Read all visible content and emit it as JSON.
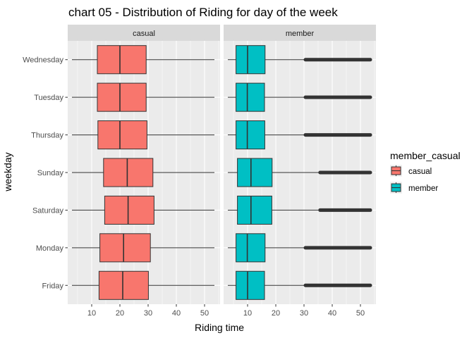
{
  "chart_data": {
    "type": "boxplot",
    "title": "chart 05 - Distribution of Riding for day of the week",
    "xlabel": "Riding time",
    "ylabel": "weekday",
    "xlim": [
      1.5,
      55.5
    ],
    "xticks": [
      10,
      20,
      30,
      40,
      50
    ],
    "categories": [
      "Wednesday",
      "Tuesday",
      "Thursday",
      "Sunday",
      "Saturday",
      "Monday",
      "Friday"
    ],
    "grid": true,
    "legend": {
      "title": "member_casual",
      "position": "right",
      "items": [
        {
          "label": "casual",
          "color": "#F8766D"
        },
        {
          "label": "member",
          "color": "#00BFC4"
        }
      ]
    },
    "panels": [
      {
        "label": "casual",
        "color": "#F8766D",
        "boxes": [
          {
            "category": "Wednesday",
            "whisker_low": 3,
            "q1": 12.0,
            "median": 20.0,
            "q3": 29.3,
            "whisker_high": 53.5
          },
          {
            "category": "Tuesday",
            "whisker_low": 3,
            "q1": 12.0,
            "median": 20.0,
            "q3": 29.3,
            "whisker_high": 53.5
          },
          {
            "category": "Thursday",
            "whisker_low": 3,
            "q1": 12.2,
            "median": 20.0,
            "q3": 29.6,
            "whisker_high": 53.5
          },
          {
            "category": "Sunday",
            "whisker_low": 3,
            "q1": 14.2,
            "median": 22.6,
            "q3": 31.7,
            "whisker_high": 53.5
          },
          {
            "category": "Saturday",
            "whisker_low": 3,
            "q1": 14.6,
            "median": 22.9,
            "q3": 32.1,
            "whisker_high": 53.5
          },
          {
            "category": "Monday",
            "whisker_low": 3,
            "q1": 12.9,
            "median": 21.3,
            "q3": 30.8,
            "whisker_high": 53.5
          },
          {
            "category": "Friday",
            "whisker_low": 3,
            "q1": 12.6,
            "median": 21.0,
            "q3": 30.1,
            "whisker_high": 53.5
          }
        ]
      },
      {
        "label": "member",
        "color": "#00BFC4",
        "boxes": [
          {
            "category": "Wednesday",
            "whisker_low": 3,
            "q1": 5.9,
            "median": 10.0,
            "q3": 16.2,
            "whisker_high": 30.5,
            "outliers_to": 53.5
          },
          {
            "category": "Tuesday",
            "whisker_low": 3,
            "q1": 5.9,
            "median": 9.9,
            "q3": 16.0,
            "whisker_high": 30.5,
            "outliers_to": 53.5
          },
          {
            "category": "Thursday",
            "whisker_low": 3,
            "q1": 5.9,
            "median": 9.9,
            "q3": 16.1,
            "whisker_high": 30.5,
            "outliers_to": 53.5
          },
          {
            "category": "Sunday",
            "whisker_low": 3,
            "q1": 6.4,
            "median": 11.2,
            "q3": 18.7,
            "whisker_high": 35.7,
            "outliers_to": 53.5
          },
          {
            "category": "Saturday",
            "whisker_low": 3,
            "q1": 6.4,
            "median": 11.2,
            "q3": 18.6,
            "whisker_high": 35.7,
            "outliers_to": 53.5
          },
          {
            "category": "Monday",
            "whisker_low": 3,
            "q1": 5.9,
            "median": 9.9,
            "q3": 16.2,
            "whisker_high": 30.5,
            "outliers_to": 53.5
          },
          {
            "category": "Friday",
            "whisker_low": 3,
            "q1": 5.9,
            "median": 10.0,
            "q3": 16.0,
            "whisker_high": 30.5,
            "outliers_to": 53.5
          }
        ]
      }
    ]
  }
}
